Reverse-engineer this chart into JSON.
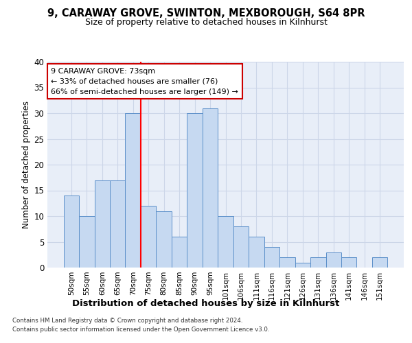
{
  "title1": "9, CARAWAY GROVE, SWINTON, MEXBOROUGH, S64 8PR",
  "title2": "Size of property relative to detached houses in Kilnhurst",
  "xlabel": "Distribution of detached houses by size in Kilnhurst",
  "ylabel": "Number of detached properties",
  "categories": [
    "50sqm",
    "55sqm",
    "60sqm",
    "65sqm",
    "70sqm",
    "75sqm",
    "80sqm",
    "85sqm",
    "90sqm",
    "95sqm",
    "101sqm",
    "106sqm",
    "111sqm",
    "116sqm",
    "121sqm",
    "126sqm",
    "131sqm",
    "136sqm",
    "141sqm",
    "146sqm",
    "151sqm"
  ],
  "values": [
    14,
    10,
    17,
    17,
    30,
    12,
    11,
    6,
    30,
    31,
    10,
    8,
    6,
    4,
    2,
    1,
    2,
    3,
    2,
    0,
    2
  ],
  "bar_color": "#c6d9f1",
  "bar_edge_color": "#5b8fc9",
  "ref_line_x": 4.5,
  "annotation_title": "9 CARAWAY GROVE: 73sqm",
  "annotation_line1": "← 33% of detached houses are smaller (76)",
  "annotation_line2": "66% of semi-detached houses are larger (149) →",
  "annotation_box_color": "#ffffff",
  "annotation_box_edge_color": "#cc0000",
  "ylim": [
    0,
    40
  ],
  "yticks": [
    0,
    5,
    10,
    15,
    20,
    25,
    30,
    35,
    40
  ],
  "footer1": "Contains HM Land Registry data © Crown copyright and database right 2024.",
  "footer2": "Contains public sector information licensed under the Open Government Licence v3.0.",
  "grid_color": "#ccd6e8",
  "background_color": "#e8eef8"
}
